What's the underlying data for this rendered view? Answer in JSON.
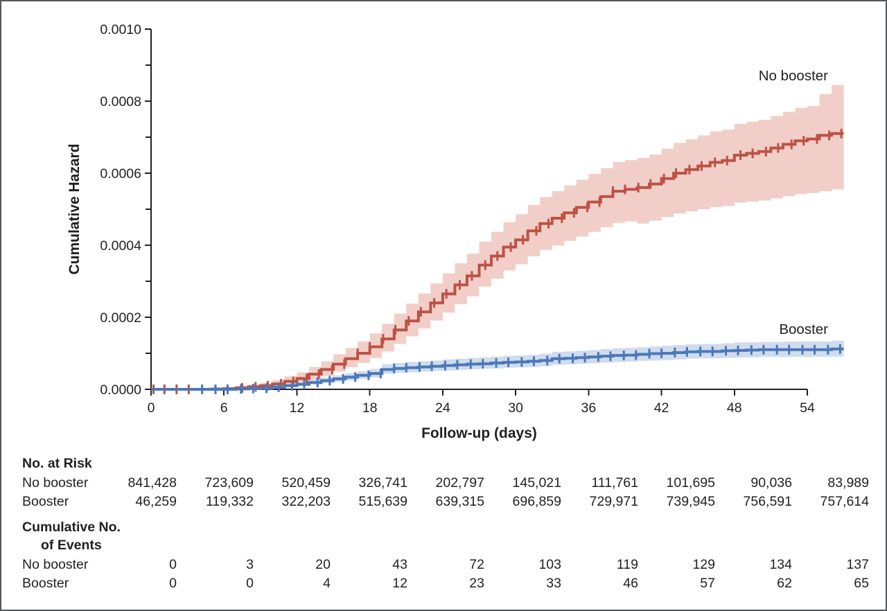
{
  "figure": {
    "background": "#ffffff",
    "border_color": "#55565a",
    "text_color": "#231f20"
  },
  "chart_data": {
    "type": "line",
    "subtype": "step-cumulative-hazard-with-confidence-bands",
    "title": "",
    "xlabel": "Follow-up (days)",
    "ylabel": "Cumulative Hazard",
    "xlim": [
      0,
      57
    ],
    "xticks": [
      0,
      6,
      12,
      18,
      24,
      30,
      36,
      42,
      48,
      54
    ],
    "ylim": [
      0,
      0.001
    ],
    "ytick_labels": [
      "0.0000",
      "0.0002",
      "0.0004",
      "0.0006",
      "0.0008",
      "0.0010"
    ],
    "ytick_values_e4": [
      0,
      2,
      4,
      6,
      8,
      10
    ],
    "ytick_minor_e4": [
      1,
      3,
      5,
      7,
      9
    ],
    "grid": false,
    "legend_position": "labels-at-line-ends",
    "value_unit": "per person (cumulative hazard), arrays in units of 1e-4",
    "series": [
      {
        "name": "No booster",
        "color": "#bd5244",
        "band_color": "#f1cfc8",
        "values_e4": [
          0,
          0,
          0,
          0,
          0,
          0.01,
          0.02,
          0.04,
          0.07,
          0.1,
          0.15,
          0.22,
          0.3,
          0.42,
          0.55,
          0.7,
          0.85,
          1.0,
          1.18,
          1.4,
          1.65,
          1.9,
          2.15,
          2.4,
          2.65,
          2.9,
          3.15,
          3.45,
          3.7,
          3.95,
          4.15,
          4.4,
          4.6,
          4.75,
          4.9,
          5.05,
          5.2,
          5.35,
          5.5,
          5.55,
          5.6,
          5.7,
          5.85,
          6.0,
          6.1,
          6.2,
          6.3,
          6.35,
          6.5,
          6.55,
          6.6,
          6.7,
          6.8,
          6.9,
          6.95,
          7.05,
          7.1,
          7.1
        ],
        "upper_e4": [
          0,
          0,
          0,
          0,
          0,
          0.03,
          0.05,
          0.09,
          0.13,
          0.18,
          0.26,
          0.36,
          0.47,
          0.62,
          0.78,
          0.97,
          1.15,
          1.33,
          1.55,
          1.82,
          2.1,
          2.38,
          2.66,
          2.94,
          3.22,
          3.5,
          3.77,
          4.1,
          4.37,
          4.64,
          4.86,
          5.12,
          5.34,
          5.5,
          5.66,
          5.82,
          5.98,
          6.14,
          6.31,
          6.36,
          6.42,
          6.52,
          6.68,
          6.84,
          6.94,
          7.05,
          7.16,
          7.21,
          7.37,
          7.43,
          7.48,
          7.59,
          7.7,
          7.81,
          7.87,
          8.2,
          8.45,
          8.45
        ],
        "lower_e4": [
          0,
          0,
          0,
          0,
          0,
          0,
          0.01,
          0.01,
          0.03,
          0.05,
          0.08,
          0.13,
          0.18,
          0.27,
          0.37,
          0.49,
          0.61,
          0.73,
          0.87,
          1.05,
          1.26,
          1.47,
          1.69,
          1.91,
          2.13,
          2.36,
          2.58,
          2.85,
          3.07,
          3.3,
          3.47,
          3.69,
          3.87,
          3.99,
          4.12,
          4.24,
          4.37,
          4.5,
          4.62,
          4.66,
          4.6,
          4.68,
          4.78,
          4.88,
          4.94,
          5.0,
          5.06,
          5.09,
          5.18,
          5.21,
          5.24,
          5.3,
          5.36,
          5.42,
          5.45,
          5.5,
          5.55,
          5.55
        ],
        "censor_days": [
          0.2,
          1.1,
          2.1,
          3.1,
          7.5,
          8.6,
          9.6,
          10.7,
          11.7,
          12.8,
          13.8,
          14.9,
          15.9,
          17.0,
          18.0,
          19.1,
          20.1,
          21.2,
          22.2,
          23.3,
          24.3,
          25.4,
          26.4,
          27.5,
          28.5,
          29.6,
          30.6,
          31.7,
          32.7,
          33.8,
          34.8,
          35.9,
          36.9,
          38.0,
          39.0,
          40.1,
          41.1,
          42.2,
          43.2,
          44.3,
          45.3,
          46.4,
          47.4,
          48.5,
          49.5,
          50.6,
          51.6,
          52.7,
          53.7,
          54.8,
          55.8,
          56.8
        ]
      },
      {
        "name": "Booster",
        "color": "#4a78ba",
        "band_color": "#ccd9ec",
        "values_e4": [
          0,
          0,
          0,
          0,
          0,
          0,
          0,
          0.01,
          0.02,
          0.03,
          0.06,
          0.1,
          0.14,
          0.19,
          0.24,
          0.29,
          0.34,
          0.39,
          0.44,
          0.55,
          0.58,
          0.6,
          0.62,
          0.64,
          0.66,
          0.68,
          0.7,
          0.71,
          0.73,
          0.75,
          0.76,
          0.78,
          0.8,
          0.85,
          0.86,
          0.88,
          0.9,
          0.92,
          0.94,
          0.95,
          0.97,
          0.99,
          1.0,
          1.02,
          1.04,
          1.05,
          1.05,
          1.07,
          1.08,
          1.09,
          1.1,
          1.1,
          1.1,
          1.1,
          1.1,
          1.1,
          1.12,
          1.12
        ],
        "upper_e4": [
          0,
          0,
          0,
          0,
          0,
          0,
          0,
          0.02,
          0.04,
          0.06,
          0.1,
          0.15,
          0.21,
          0.27,
          0.33,
          0.39,
          0.45,
          0.51,
          0.57,
          0.7,
          0.73,
          0.76,
          0.78,
          0.8,
          0.83,
          0.85,
          0.87,
          0.89,
          0.91,
          0.93,
          0.94,
          0.96,
          0.99,
          1.04,
          1.05,
          1.07,
          1.09,
          1.12,
          1.14,
          1.15,
          1.17,
          1.19,
          1.21,
          1.23,
          1.25,
          1.26,
          1.26,
          1.28,
          1.3,
          1.31,
          1.32,
          1.32,
          1.33,
          1.33,
          1.33,
          1.33,
          1.35,
          1.35
        ],
        "lower_e4": [
          0,
          0,
          0,
          0,
          0,
          0,
          0,
          0,
          0.01,
          0.01,
          0.03,
          0.06,
          0.09,
          0.13,
          0.17,
          0.21,
          0.25,
          0.29,
          0.33,
          0.43,
          0.46,
          0.47,
          0.49,
          0.51,
          0.52,
          0.54,
          0.56,
          0.57,
          0.58,
          0.6,
          0.61,
          0.62,
          0.64,
          0.68,
          0.69,
          0.71,
          0.72,
          0.74,
          0.76,
          0.77,
          0.79,
          0.8,
          0.81,
          0.83,
          0.85,
          0.86,
          0.86,
          0.87,
          0.88,
          0.89,
          0.9,
          0.9,
          0.9,
          0.9,
          0.9,
          0.9,
          0.91,
          0.91
        ],
        "censor_days": [
          4.2,
          5.3,
          6.3,
          7.4,
          8.4,
          9.5,
          10.5,
          11.6,
          12.6,
          13.7,
          14.7,
          15.8,
          16.8,
          17.9,
          18.9,
          20.0,
          21.0,
          22.1,
          23.1,
          24.2,
          25.2,
          26.3,
          27.3,
          28.4,
          29.4,
          30.5,
          31.5,
          32.6,
          33.6,
          34.7,
          35.7,
          36.8,
          37.8,
          38.9,
          39.9,
          41.0,
          42.0,
          43.1,
          44.1,
          45.2,
          46.2,
          47.3,
          48.3,
          49.4,
          50.4,
          51.5,
          52.5,
          53.6,
          54.6,
          55.7,
          56.7
        ]
      }
    ]
  },
  "risk_table": {
    "header": "No. at Risk",
    "rows": [
      {
        "label": "No booster",
        "values": [
          "841,428",
          "723,609",
          "520,459",
          "326,741",
          "202,797",
          "145,021",
          "111,761",
          "101,695",
          "90,036",
          "83,989"
        ]
      },
      {
        "label": "Booster",
        "values": [
          "46,259",
          "119,332",
          "322,203",
          "515,639",
          "639,315",
          "696,859",
          "729,971",
          "739,945",
          "756,591",
          "757,614"
        ]
      }
    ],
    "events_header": {
      "line1": "Cumulative No.",
      "line2": "of Events"
    },
    "events_rows": [
      {
        "label": "No booster",
        "values": [
          "0",
          "3",
          "20",
          "43",
          "72",
          "103",
          "119",
          "129",
          "134",
          "137"
        ]
      },
      {
        "label": "Booster",
        "values": [
          "0",
          "0",
          "4",
          "12",
          "23",
          "33",
          "46",
          "57",
          "62",
          "65"
        ]
      }
    ]
  }
}
